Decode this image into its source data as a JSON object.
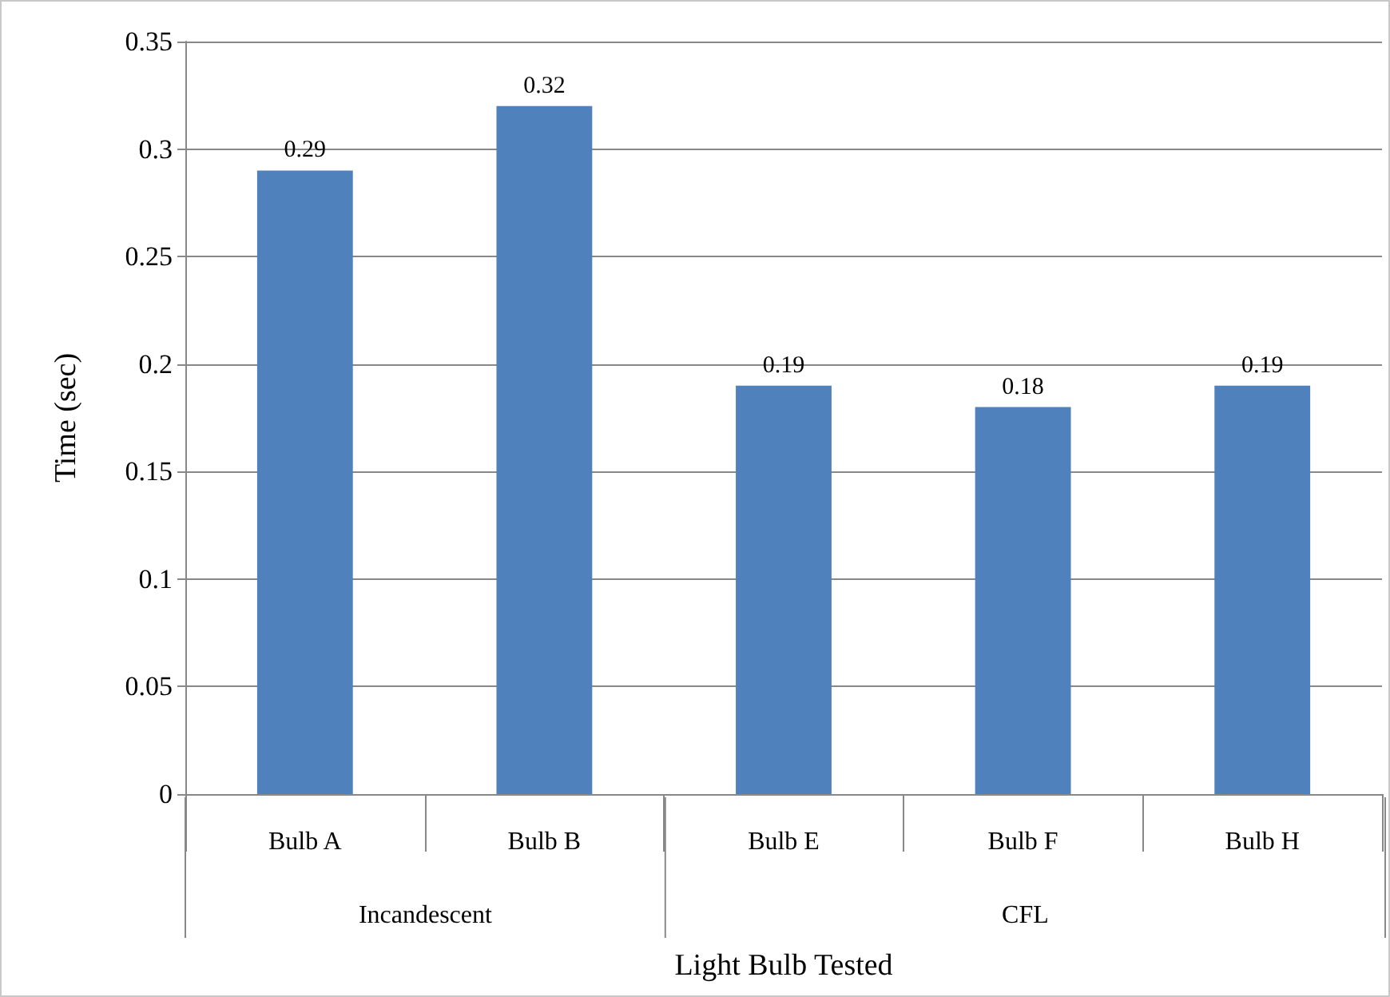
{
  "chart_data": {
    "type": "bar",
    "xlabel": "Light Bulb Tested",
    "ylabel": "Time (sec)",
    "categories": [
      "Bulb A",
      "Bulb B",
      "Bulb E",
      "Bulb F",
      "Bulb H"
    ],
    "values": [
      0.29,
      0.32,
      0.19,
      0.18,
      0.19
    ],
    "color": "#4f81bd",
    "ylim": [
      0,
      0.35
    ],
    "yticks": [
      0,
      0.05,
      0.1,
      0.15,
      0.2,
      0.25,
      0.3,
      0.35
    ],
    "grid": "y",
    "data_labels": true,
    "annotations": [
      "Incandescent",
      "CFL"
    ]
  }
}
